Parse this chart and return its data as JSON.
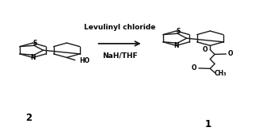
{
  "background_color": "#ffffff",
  "figsize": [
    3.51,
    1.7
  ],
  "dpi": 100,
  "arrow_label_top": "Levulinyl chloride",
  "arrow_label_bottom": "NaH/THF",
  "compound_left_label": "2",
  "compound_right_label": "1",
  "line_color": "#1a1a1a",
  "line_width": 1.0,
  "text_color": "#000000",
  "font_size_arrow": 6.5,
  "font_size_label": 5.5,
  "font_size_compound": 8.5
}
